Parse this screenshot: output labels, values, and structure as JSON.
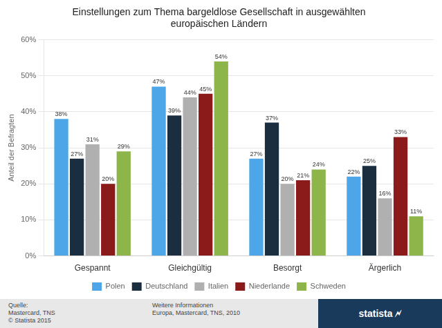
{
  "chart_data": {
    "type": "bar",
    "title": "Einstellungen zum Thema bargeldlose Gesellschaft in ausgewählten\neuropäischen Ländern",
    "y_label": "Anteil der Befragten",
    "categories": [
      "Gespannt",
      "Gleichgültig",
      "Besorgt",
      "Ärgerlich"
    ],
    "series": [
      {
        "name": "Polen",
        "color": "#4da6e8",
        "values": [
          38,
          47,
          27,
          22
        ],
        "value_labels": [
          "38%",
          "47%",
          "27%",
          "22%"
        ]
      },
      {
        "name": "Deutschland",
        "color": "#1a2e40",
        "values": [
          27,
          39,
          37,
          25
        ],
        "value_labels": [
          "27%",
          "39%",
          "37%",
          "25%"
        ]
      },
      {
        "name": "Italien",
        "color": "#b0b0b0",
        "values": [
          31,
          44,
          20,
          16
        ],
        "value_labels": [
          "31%",
          "44%",
          "20%",
          "16%"
        ]
      },
      {
        "name": "Niederlande",
        "color": "#8b1a1a",
        "values": [
          20,
          45,
          21,
          33
        ],
        "value_labels": [
          "20%",
          "45%",
          "21%",
          "33%"
        ]
      },
      {
        "name": "Schweden",
        "color": "#8db54a",
        "values": [
          29,
          54,
          24,
          11
        ],
        "value_labels": [
          "29%",
          "54%",
          "24%",
          "11%"
        ]
      }
    ],
    "ylim": [
      0,
      60
    ],
    "yticks": [
      {
        "value": 0,
        "label": "0%"
      },
      {
        "value": 10,
        "label": "10%"
      },
      {
        "value": 20,
        "label": "20%"
      },
      {
        "value": 30,
        "label": "30%"
      },
      {
        "value": 40,
        "label": "40%"
      },
      {
        "value": 50,
        "label": "50%"
      },
      {
        "value": 60,
        "label": "60%"
      }
    ],
    "grid": true,
    "legend": "bottom",
    "data_labels": true,
    "annotations": [
      "Quelle:\nMastercard, TNS\n© Statista 2015",
      "Weitere Informationen\nEuropa, Mastercard, TNS, 2010",
      "statista 🗲"
    ]
  }
}
